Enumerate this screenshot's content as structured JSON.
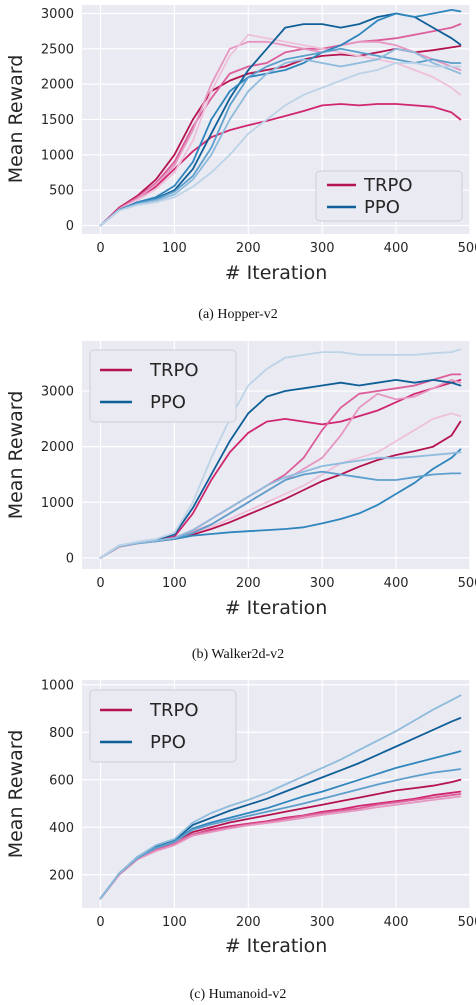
{
  "figure": {
    "captions": [
      "(a) Hopper-v2",
      "(b) Walker2d-v2",
      "(c) Humanoid-v2"
    ]
  },
  "colors": {
    "background": "#eaeaf2",
    "grid": "#ffffff",
    "TRPO": [
      "#b5134f",
      "#d0266f",
      "#dc5e9b",
      "#e596c1",
      "#eec0da"
    ],
    "PPO": [
      "#0f5f98",
      "#2e86bd",
      "#5d9fcc",
      "#8fbbdc",
      "#bcd3e8"
    ]
  },
  "chart_data": [
    {
      "type": "line",
      "title": "",
      "xlabel": "# Iteration",
      "ylabel": "Mean Reward",
      "xlim": [
        -25,
        500
      ],
      "ylim": [
        -120,
        3120
      ],
      "xticks": [
        0,
        100,
        200,
        300,
        400,
        500
      ],
      "xtick_labels": [
        "0",
        "100",
        "200",
        "300",
        "400",
        "500"
      ],
      "yticks": [
        0,
        500,
        1000,
        1500,
        2000,
        2500,
        3000
      ],
      "ytick_labels": [
        "0",
        "500",
        "1000",
        "1500",
        "2000",
        "2500",
        "3000"
      ],
      "grid": true,
      "legend": {
        "position": "lower-right",
        "entries": [
          "TRPO",
          "PPO"
        ]
      },
      "x": [
        0,
        25,
        50,
        75,
        100,
        125,
        150,
        175,
        200,
        225,
        250,
        275,
        300,
        325,
        350,
        375,
        400,
        425,
        450,
        475,
        487
      ],
      "series": [
        {
          "name": "TRPO",
          "values": [
            0,
            250,
            420,
            650,
            1000,
            1500,
            1900,
            2050,
            2150,
            2200,
            2250,
            2350,
            2400,
            2420,
            2400,
            2450,
            2500,
            2450,
            2480,
            2520,
            2540
          ]
        },
        {
          "name": "TRPO",
          "values": [
            0,
            230,
            380,
            550,
            800,
            1050,
            1250,
            1350,
            1420,
            1480,
            1550,
            1620,
            1700,
            1720,
            1700,
            1720,
            1720,
            1700,
            1680,
            1600,
            1500
          ]
        },
        {
          "name": "TRPO",
          "values": [
            0,
            240,
            400,
            600,
            900,
            1400,
            1800,
            2150,
            2250,
            2300,
            2450,
            2500,
            2500,
            2550,
            2600,
            2620,
            2650,
            2700,
            2750,
            2800,
            2850
          ]
        },
        {
          "name": "TRPO",
          "values": [
            0,
            230,
            380,
            580,
            850,
            1350,
            2000,
            2500,
            2600,
            2600,
            2550,
            2500,
            2450,
            2550,
            2600,
            2600,
            2550,
            2450,
            2350,
            2250,
            2200
          ]
        },
        {
          "name": "TRPO",
          "values": [
            0,
            220,
            360,
            520,
            750,
            1200,
            1900,
            2400,
            2700,
            2650,
            2600,
            2550,
            2500,
            2450,
            2400,
            2350,
            2300,
            2200,
            2100,
            1950,
            1850
          ]
        },
        {
          "name": "PPO",
          "values": [
            0,
            220,
            320,
            380,
            500,
            800,
            1300,
            1800,
            2200,
            2500,
            2800,
            2850,
            2850,
            2800,
            2850,
            2950,
            3000,
            2950,
            2800,
            2650,
            2560
          ]
        },
        {
          "name": "PPO",
          "values": [
            0,
            220,
            330,
            400,
            560,
            900,
            1500,
            1900,
            2100,
            2150,
            2200,
            2300,
            2450,
            2550,
            2700,
            2900,
            3000,
            2950,
            3000,
            3050,
            3030
          ]
        },
        {
          "name": "PPO",
          "values": [
            0,
            215,
            310,
            370,
            480,
            700,
            1100,
            1700,
            2100,
            2250,
            2350,
            2400,
            2450,
            2500,
            2450,
            2400,
            2350,
            2300,
            2350,
            2300,
            2300
          ]
        },
        {
          "name": "PPO",
          "values": [
            0,
            215,
            300,
            350,
            440,
            650,
            1000,
            1500,
            1900,
            2150,
            2300,
            2350,
            2300,
            2250,
            2300,
            2350,
            2500,
            2450,
            2300,
            2200,
            2150
          ]
        },
        {
          "name": "PPO",
          "values": [
            0,
            210,
            290,
            330,
            400,
            550,
            750,
            1000,
            1300,
            1500,
            1700,
            1850,
            1950,
            2050,
            2150,
            2200,
            2300,
            2300,
            2250,
            2250,
            2250
          ]
        }
      ]
    },
    {
      "type": "line",
      "title": "",
      "xlabel": "# Iteration",
      "ylabel": "Mean Reward",
      "xlim": [
        -25,
        500
      ],
      "ylim": [
        -200,
        3900
      ],
      "xticks": [
        0,
        100,
        200,
        300,
        400,
        500
      ],
      "xtick_labels": [
        "0",
        "100",
        "200",
        "300",
        "400",
        "500"
      ],
      "yticks": [
        0,
        1000,
        2000,
        3000
      ],
      "ytick_labels": [
        "0",
        "1000",
        "2000",
        "3000"
      ],
      "grid": true,
      "legend": {
        "position": "top-left",
        "entries": [
          "TRPO",
          "PPO"
        ]
      },
      "x": [
        0,
        25,
        50,
        75,
        100,
        125,
        150,
        175,
        200,
        225,
        250,
        275,
        300,
        325,
        350,
        375,
        400,
        425,
        450,
        475,
        487
      ],
      "series": [
        {
          "name": "TRPO",
          "values": [
            0,
            200,
            260,
            300,
            340,
            420,
            520,
            640,
            780,
            920,
            1060,
            1220,
            1380,
            1500,
            1640,
            1760,
            1850,
            1920,
            2000,
            2200,
            2450
          ]
        },
        {
          "name": "TRPO",
          "values": [
            0,
            220,
            280,
            330,
            380,
            800,
            1400,
            1900,
            2250,
            2450,
            2500,
            2450,
            2400,
            2450,
            2550,
            2650,
            2800,
            2950,
            3050,
            3150,
            3200
          ]
        },
        {
          "name": "TRPO",
          "values": [
            0,
            210,
            270,
            310,
            360,
            500,
            700,
            900,
            1100,
            1300,
            1500,
            1800,
            2300,
            2700,
            2950,
            3000,
            3050,
            3100,
            3200,
            3300,
            3300
          ]
        },
        {
          "name": "TRPO",
          "values": [
            0,
            205,
            265,
            305,
            350,
            470,
            600,
            800,
            1000,
            1200,
            1400,
            1600,
            1800,
            2200,
            2700,
            2950,
            2850,
            2900,
            3050,
            3200,
            3150
          ]
        },
        {
          "name": "TRPO",
          "values": [
            0,
            205,
            260,
            300,
            340,
            450,
            560,
            700,
            850,
            1000,
            1150,
            1300,
            1500,
            1700,
            1800,
            1900,
            2100,
            2300,
            2500,
            2600,
            2550
          ]
        },
        {
          "name": "PPO",
          "values": [
            0,
            220,
            280,
            330,
            420,
            900,
            1500,
            2100,
            2600,
            2900,
            3000,
            3050,
            3100,
            3150,
            3100,
            3150,
            3200,
            3150,
            3200,
            3150,
            3100
          ]
        },
        {
          "name": "PPO",
          "values": [
            0,
            210,
            260,
            300,
            340,
            400,
            430,
            460,
            480,
            500,
            520,
            550,
            620,
            700,
            800,
            950,
            1150,
            1350,
            1600,
            1800,
            1950
          ]
        },
        {
          "name": "PPO",
          "values": [
            0,
            210,
            265,
            300,
            350,
            450,
            600,
            800,
            1000,
            1200,
            1400,
            1500,
            1550,
            1500,
            1450,
            1400,
            1400,
            1450,
            1500,
            1520,
            1520
          ]
        },
        {
          "name": "PPO",
          "values": [
            0,
            210,
            265,
            310,
            360,
            500,
            700,
            900,
            1100,
            1300,
            1450,
            1550,
            1650,
            1700,
            1750,
            1800,
            1800,
            1820,
            1850,
            1880,
            1900
          ]
        },
        {
          "name": "PPO",
          "values": [
            0,
            225,
            290,
            340,
            450,
            1000,
            1800,
            2500,
            3100,
            3400,
            3600,
            3650,
            3700,
            3700,
            3650,
            3650,
            3650,
            3650,
            3680,
            3700,
            3750
          ]
        }
      ]
    },
    {
      "type": "line",
      "title": "",
      "xlabel": "# Iteration",
      "ylabel": "Mean Reward",
      "xlim": [
        -25,
        500
      ],
      "ylim": [
        60,
        1020
      ],
      "xticks": [
        0,
        100,
        200,
        300,
        400,
        500
      ],
      "xtick_labels": [
        "0",
        "100",
        "200",
        "300",
        "400",
        "500"
      ],
      "yticks": [
        200,
        400,
        600,
        800,
        1000
      ],
      "ytick_labels": [
        "200",
        "400",
        "600",
        "800",
        "1000"
      ],
      "grid": true,
      "legend": {
        "position": "top-left",
        "entries": [
          "TRPO",
          "PPO"
        ]
      },
      "x": [
        0,
        25,
        50,
        75,
        100,
        125,
        150,
        175,
        200,
        225,
        250,
        275,
        300,
        325,
        350,
        375,
        400,
        425,
        450,
        475,
        487
      ],
      "series": [
        {
          "name": "TRPO",
          "values": [
            100,
            200,
            270,
            310,
            340,
            380,
            400,
            420,
            435,
            450,
            465,
            480,
            495,
            510,
            525,
            540,
            555,
            565,
            575,
            590,
            600
          ]
        },
        {
          "name": "TRPO",
          "values": [
            100,
            200,
            265,
            305,
            330,
            370,
            390,
            405,
            415,
            425,
            440,
            450,
            465,
            475,
            490,
            500,
            510,
            520,
            535,
            545,
            550
          ]
        },
        {
          "name": "TRPO",
          "values": [
            100,
            200,
            265,
            305,
            330,
            370,
            385,
            400,
            412,
            422,
            435,
            448,
            460,
            470,
            480,
            495,
            505,
            515,
            525,
            535,
            540
          ]
        },
        {
          "name": "TRPO",
          "values": [
            100,
            200,
            265,
            300,
            325,
            365,
            380,
            395,
            408,
            418,
            428,
            440,
            452,
            462,
            472,
            485,
            495,
            505,
            515,
            525,
            530
          ]
        },
        {
          "name": "PPO",
          "values": [
            100,
            205,
            275,
            320,
            345,
            410,
            440,
            470,
            495,
            520,
            550,
            580,
            610,
            640,
            670,
            705,
            740,
            775,
            810,
            845,
            860
          ]
        },
        {
          "name": "PPO",
          "values": [
            100,
            205,
            270,
            315,
            340,
            395,
            420,
            440,
            460,
            480,
            505,
            530,
            550,
            575,
            600,
            625,
            650,
            670,
            690,
            710,
            720
          ]
        },
        {
          "name": "PPO",
          "values": [
            100,
            205,
            270,
            312,
            338,
            390,
            412,
            430,
            448,
            465,
            482,
            500,
            520,
            540,
            560,
            580,
            598,
            615,
            630,
            640,
            645
          ]
        },
        {
          "name": "PPO",
          "values": [
            100,
            205,
            275,
            325,
            350,
            420,
            460,
            490,
            515,
            545,
            580,
            615,
            650,
            685,
            725,
            765,
            805,
            850,
            895,
            935,
            955
          ]
        }
      ]
    }
  ]
}
